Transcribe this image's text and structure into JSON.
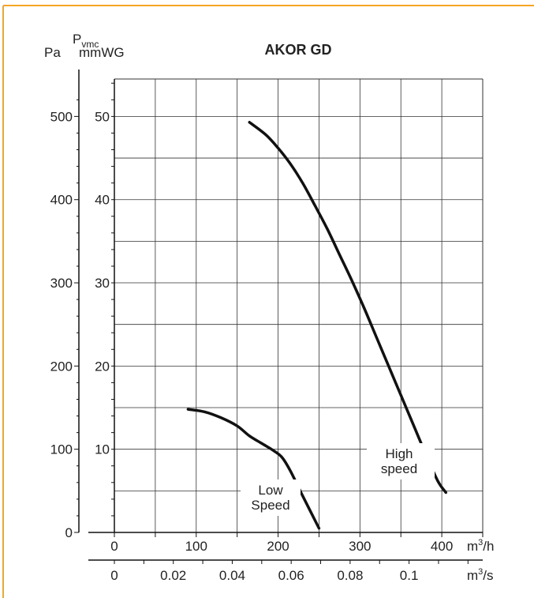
{
  "chart_data": {
    "type": "line",
    "title": "AKOR GD",
    "y_axis_left": {
      "label": "Pa",
      "ticks": [
        "0",
        "100",
        "200",
        "300",
        "400",
        "500"
      ],
      "range": [
        0,
        500
      ]
    },
    "y_axis_right": {
      "label_main": "P",
      "label_sub": "vmc",
      "unit": "mmWG",
      "ticks": [
        "10",
        "20",
        "30",
        "40",
        "50"
      ],
      "range": [
        0,
        50
      ]
    },
    "x_axis_primary": {
      "unit_base": "m",
      "unit_exp": "3",
      "unit_tail": "/h",
      "ticks": [
        "0",
        "100",
        "200",
        "300",
        "400"
      ],
      "range": [
        0,
        450
      ]
    },
    "x_axis_secondary": {
      "unit_base": "m",
      "unit_exp": "3",
      "unit_tail": "/s",
      "ticks": [
        "0",
        "0.02",
        "0.04",
        "0.06",
        "0.08",
        "0.1"
      ]
    },
    "grid": true,
    "series": [
      {
        "label_lines": [
          "Low",
          "Speed"
        ],
        "points": [
          [
            90,
            148
          ],
          [
            110,
            145
          ],
          [
            130,
            138
          ],
          [
            150,
            128
          ],
          [
            165,
            116
          ],
          [
            180,
            107
          ],
          [
            195,
            98
          ],
          [
            205,
            90
          ],
          [
            215,
            74
          ],
          [
            230,
            44
          ],
          [
            250,
            5
          ]
        ]
      },
      {
        "label_lines": [
          "High",
          "speed"
        ],
        "points": [
          [
            165,
            493
          ],
          [
            185,
            478
          ],
          [
            200,
            462
          ],
          [
            215,
            443
          ],
          [
            230,
            420
          ],
          [
            245,
            393
          ],
          [
            260,
            365
          ],
          [
            275,
            334
          ],
          [
            290,
            303
          ],
          [
            305,
            270
          ],
          [
            320,
            235
          ],
          [
            335,
            200
          ],
          [
            350,
            165
          ],
          [
            365,
            130
          ],
          [
            380,
            95
          ],
          [
            395,
            62
          ],
          [
            405,
            48
          ]
        ]
      }
    ],
    "colors": {
      "frame_accent": "#f5a623",
      "line": "#111111",
      "grid": "#333333"
    }
  }
}
